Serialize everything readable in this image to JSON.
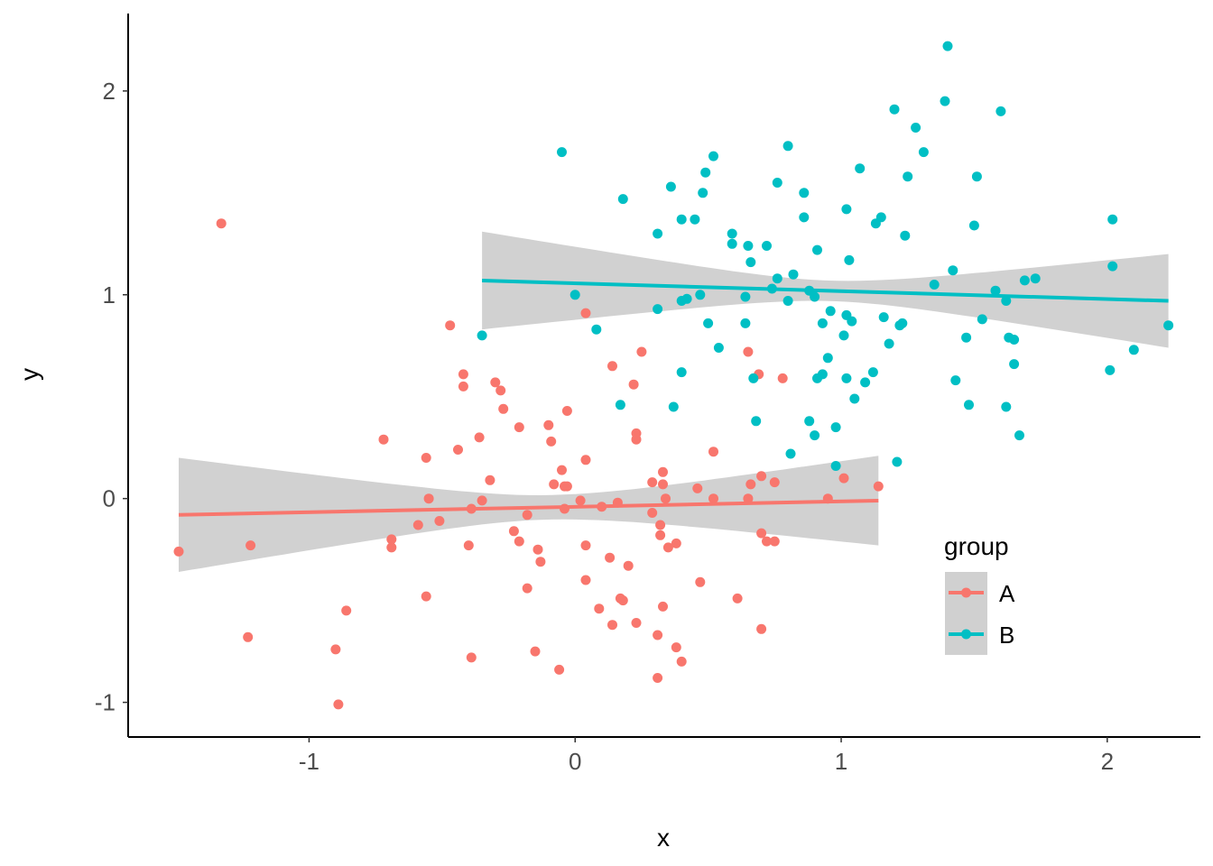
{
  "chart_data": {
    "type": "scatter",
    "title": "",
    "xlabel": "x",
    "ylabel": "y",
    "xlim": [
      -1.68,
      2.35
    ],
    "ylim": [
      -1.17,
      2.38
    ],
    "xticks": [
      -1,
      0,
      1,
      2
    ],
    "yticks": [
      -1,
      0,
      1,
      2
    ],
    "xtick_labels": [
      "-1",
      "0",
      "1",
      "2"
    ],
    "ytick_labels": [
      "-1",
      "0",
      "1",
      "2"
    ],
    "grid": false,
    "legend": {
      "title": "group",
      "position": "bottom-right"
    },
    "series": [
      {
        "name": "A",
        "color": "#F8766D",
        "fit": {
          "x0": -1.49,
          "x1": 1.14,
          "y0": -0.08,
          "y1": -0.01,
          "ci0": 0.28,
          "ci1": 0.22,
          "ci_mid": 0.06,
          "ci_mid_x": -0.1
        },
        "points": [
          [
            -1.49,
            -0.26
          ],
          [
            -1.33,
            1.35
          ],
          [
            -1.22,
            -0.23
          ],
          [
            -1.23,
            -0.68
          ],
          [
            -0.89,
            -1.01
          ],
          [
            -0.9,
            -0.74
          ],
          [
            -0.86,
            -0.55
          ],
          [
            -0.72,
            0.29
          ],
          [
            -0.69,
            -0.2
          ],
          [
            -0.69,
            -0.24
          ],
          [
            -0.59,
            -0.13
          ],
          [
            -0.56,
            0.2
          ],
          [
            -0.55,
            0.0
          ],
          [
            -0.56,
            -0.48
          ],
          [
            -0.51,
            -0.11
          ],
          [
            -0.47,
            0.85
          ],
          [
            -0.44,
            0.24
          ],
          [
            -0.42,
            0.61
          ],
          [
            -0.42,
            0.55
          ],
          [
            -0.4,
            -0.23
          ],
          [
            -0.39,
            -0.05
          ],
          [
            -0.39,
            -0.78
          ],
          [
            -0.36,
            0.3
          ],
          [
            -0.35,
            -0.01
          ],
          [
            -0.32,
            0.09
          ],
          [
            -0.3,
            0.57
          ],
          [
            -0.28,
            0.53
          ],
          [
            -0.27,
            0.44
          ],
          [
            -0.23,
            -0.16
          ],
          [
            -0.21,
            -0.21
          ],
          [
            -0.21,
            0.35
          ],
          [
            -0.18,
            -0.08
          ],
          [
            -0.18,
            -0.44
          ],
          [
            -0.15,
            -0.75
          ],
          [
            -0.14,
            -0.25
          ],
          [
            -0.13,
            -0.31
          ],
          [
            -0.1,
            0.36
          ],
          [
            -0.09,
            0.28
          ],
          [
            -0.08,
            0.07
          ],
          [
            -0.06,
            -0.84
          ],
          [
            -0.05,
            0.14
          ],
          [
            -0.04,
            0.06
          ],
          [
            -0.03,
            0.43
          ],
          [
            -0.04,
            -0.05
          ],
          [
            -0.03,
            0.06
          ],
          [
            0.02,
            -0.01
          ],
          [
            0.04,
            0.91
          ],
          [
            0.04,
            0.19
          ],
          [
            0.04,
            -0.23
          ],
          [
            0.04,
            -0.4
          ],
          [
            0.09,
            -0.54
          ],
          [
            0.1,
            -0.04
          ],
          [
            0.13,
            -0.29
          ],
          [
            0.14,
            -0.62
          ],
          [
            0.14,
            0.65
          ],
          [
            0.16,
            -0.02
          ],
          [
            0.17,
            -0.49
          ],
          [
            0.18,
            -0.5
          ],
          [
            0.2,
            -0.33
          ],
          [
            0.22,
            0.56
          ],
          [
            0.23,
            0.32
          ],
          [
            0.23,
            0.29
          ],
          [
            0.23,
            -0.61
          ],
          [
            0.25,
            0.72
          ],
          [
            0.29,
            -0.07
          ],
          [
            0.29,
            0.08
          ],
          [
            0.31,
            -0.67
          ],
          [
            0.31,
            -0.88
          ],
          [
            0.32,
            -0.13
          ],
          [
            0.32,
            -0.18
          ],
          [
            0.33,
            0.07
          ],
          [
            0.33,
            0.13
          ],
          [
            0.33,
            -0.53
          ],
          [
            0.34,
            0.0
          ],
          [
            0.35,
            -0.24
          ],
          [
            0.38,
            -0.22
          ],
          [
            0.38,
            -0.73
          ],
          [
            0.4,
            -0.8
          ],
          [
            0.46,
            0.05
          ],
          [
            0.47,
            -0.41
          ],
          [
            0.52,
            0.23
          ],
          [
            0.52,
            0.0
          ],
          [
            0.61,
            -0.49
          ],
          [
            0.65,
            0.72
          ],
          [
            0.65,
            -0.0
          ],
          [
            0.66,
            0.07
          ],
          [
            0.69,
            0.61
          ],
          [
            0.7,
            0.11
          ],
          [
            0.7,
            -0.64
          ],
          [
            0.7,
            -0.17
          ],
          [
            0.72,
            -0.21
          ],
          [
            0.75,
            -0.21
          ],
          [
            0.75,
            0.08
          ],
          [
            0.78,
            0.59
          ],
          [
            0.95,
            0.0
          ],
          [
            1.01,
            0.1
          ],
          [
            1.14,
            0.06
          ]
        ]
      },
      {
        "name": "B",
        "color": "#00BFC4",
        "fit": {
          "x0": -0.35,
          "x1": 2.23,
          "y0": 1.07,
          "y1": 0.97,
          "ci0": 0.24,
          "ci1": 0.23,
          "ci_mid": 0.05,
          "ci_mid_x": 0.96
        },
        "points": [
          [
            -0.35,
            0.8
          ],
          [
            -0.05,
            1.7
          ],
          [
            0.0,
            1.0
          ],
          [
            0.08,
            0.83
          ],
          [
            0.17,
            0.46
          ],
          [
            0.18,
            1.47
          ],
          [
            0.31,
            1.3
          ],
          [
            0.31,
            0.93
          ],
          [
            0.36,
            1.53
          ],
          [
            0.37,
            0.45
          ],
          [
            0.4,
            1.37
          ],
          [
            0.4,
            0.62
          ],
          [
            0.4,
            0.97
          ],
          [
            0.42,
            0.98
          ],
          [
            0.45,
            1.37
          ],
          [
            0.47,
            1.0
          ],
          [
            0.48,
            1.5
          ],
          [
            0.49,
            1.6
          ],
          [
            0.5,
            0.86
          ],
          [
            0.52,
            1.68
          ],
          [
            0.54,
            0.74
          ],
          [
            0.59,
            1.3
          ],
          [
            0.59,
            1.25
          ],
          [
            0.64,
            0.86
          ],
          [
            0.64,
            0.99
          ],
          [
            0.65,
            1.24
          ],
          [
            0.66,
            1.16
          ],
          [
            0.67,
            0.59
          ],
          [
            0.68,
            0.38
          ],
          [
            0.72,
            1.24
          ],
          [
            0.74,
            1.03
          ],
          [
            0.76,
            1.55
          ],
          [
            0.76,
            1.08
          ],
          [
            0.8,
            1.73
          ],
          [
            0.8,
            0.97
          ],
          [
            0.81,
            0.22
          ],
          [
            0.82,
            1.1
          ],
          [
            0.86,
            1.5
          ],
          [
            0.86,
            1.38
          ],
          [
            0.88,
            1.02
          ],
          [
            0.88,
            0.38
          ],
          [
            0.9,
            0.99
          ],
          [
            0.9,
            0.31
          ],
          [
            0.91,
            1.22
          ],
          [
            0.91,
            0.59
          ],
          [
            0.93,
            0.61
          ],
          [
            0.93,
            0.86
          ],
          [
            0.95,
            0.69
          ],
          [
            0.96,
            0.92
          ],
          [
            0.98,
            0.35
          ],
          [
            0.98,
            0.16
          ],
          [
            1.01,
            0.8
          ],
          [
            1.02,
            1.42
          ],
          [
            1.02,
            0.9
          ],
          [
            1.02,
            0.59
          ],
          [
            1.03,
            1.17
          ],
          [
            1.04,
            0.87
          ],
          [
            1.05,
            0.49
          ],
          [
            1.07,
            1.62
          ],
          [
            1.09,
            0.57
          ],
          [
            1.12,
            0.62
          ],
          [
            1.13,
            1.35
          ],
          [
            1.15,
            1.38
          ],
          [
            1.16,
            0.89
          ],
          [
            1.18,
            0.76
          ],
          [
            1.2,
            1.91
          ],
          [
            1.21,
            0.18
          ],
          [
            1.22,
            0.85
          ],
          [
            1.23,
            0.86
          ],
          [
            1.24,
            1.29
          ],
          [
            1.25,
            1.58
          ],
          [
            1.28,
            1.82
          ],
          [
            1.31,
            1.7
          ],
          [
            1.35,
            1.05
          ],
          [
            1.39,
            1.95
          ],
          [
            1.4,
            2.22
          ],
          [
            1.42,
            1.12
          ],
          [
            1.43,
            0.58
          ],
          [
            1.47,
            0.79
          ],
          [
            1.48,
            0.46
          ],
          [
            1.5,
            1.34
          ],
          [
            1.51,
            1.58
          ],
          [
            1.53,
            0.88
          ],
          [
            1.58,
            1.02
          ],
          [
            1.6,
            1.9
          ],
          [
            1.62,
            0.97
          ],
          [
            1.62,
            0.45
          ],
          [
            1.63,
            0.79
          ],
          [
            1.65,
            0.78
          ],
          [
            1.65,
            0.66
          ],
          [
            1.67,
            0.31
          ],
          [
            1.69,
            1.07
          ],
          [
            1.73,
            1.08
          ],
          [
            2.01,
            0.63
          ],
          [
            2.02,
            1.37
          ],
          [
            2.02,
            1.14
          ],
          [
            2.1,
            0.73
          ],
          [
            2.23,
            0.85
          ]
        ]
      }
    ]
  }
}
